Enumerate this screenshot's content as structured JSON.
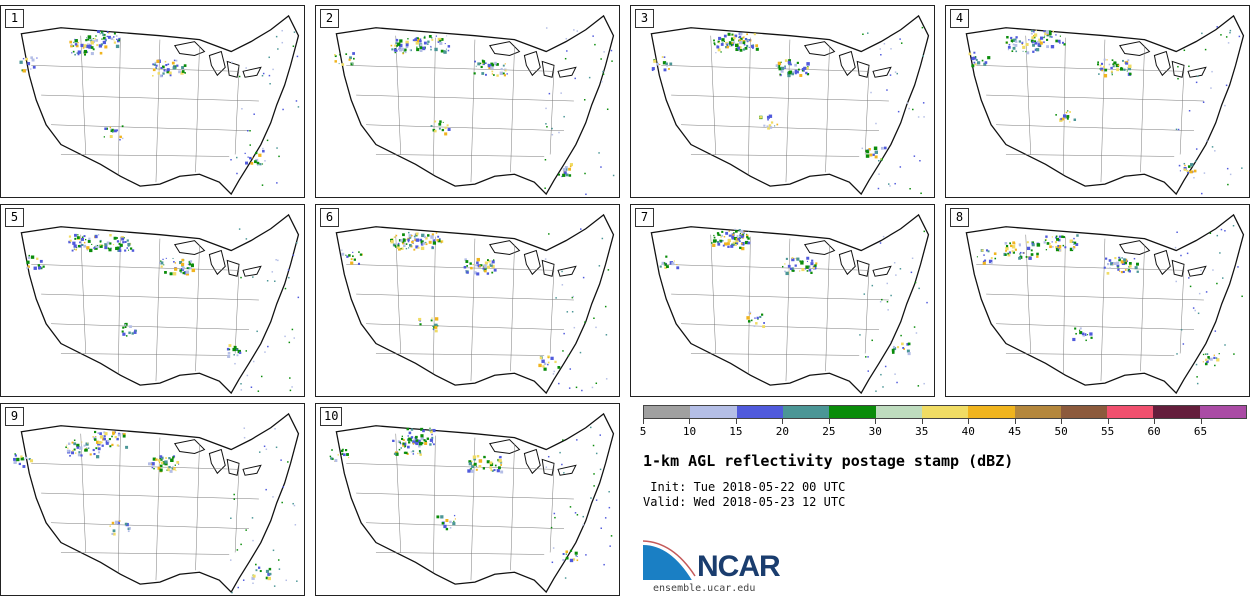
{
  "panels": [
    {
      "number": "1"
    },
    {
      "number": "2"
    },
    {
      "number": "3"
    },
    {
      "number": "4"
    },
    {
      "number": "5"
    },
    {
      "number": "6"
    },
    {
      "number": "7"
    },
    {
      "number": "8"
    },
    {
      "number": "9"
    },
    {
      "number": "10"
    }
  ],
  "colorbar": {
    "colors": [
      "#a0a0a0",
      "#b4bee6",
      "#505adc",
      "#4b9696",
      "#0a8c0a",
      "#bedcbe",
      "#f0dc64",
      "#f0b41e",
      "#b4873c",
      "#8c5a3c",
      "#f0506e",
      "#641e3c",
      "#aa4ba5"
    ],
    "ticks": [
      "5",
      "10",
      "15",
      "20",
      "25",
      "30",
      "35",
      "40",
      "45",
      "50",
      "55",
      "60",
      "65"
    ]
  },
  "title": "1-km AGL reflectivity postage stamp (dBZ)",
  "init": " Init: Tue 2018-05-22 00 UTC",
  "valid": "Valid: Wed 2018-05-23 12 UTC",
  "logo": {
    "text": "NCAR",
    "site": "ensemble.ucar.edu"
  }
}
